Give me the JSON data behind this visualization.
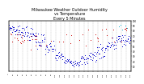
{
  "title": "Milwaukee Weather Outdoor Humidity\nvs Temperature\nEvery 5 Minutes",
  "title_fontsize": 3.5,
  "background_color": "#ffffff",
  "plot_bg_color": "#ffffff",
  "grid_color": "#aaaaaa",
  "blue_color": "#0000cc",
  "red_color": "#cc0000",
  "cyan_color": "#00aacc",
  "dot_size": 0.5,
  "xlim": [
    0,
    260
  ],
  "ylim": [
    0,
    100
  ],
  "right_axis_ticks": [
    10,
    20,
    30,
    40,
    50,
    60,
    70,
    80,
    90,
    100
  ],
  "n_grid_lines": 27,
  "seed": 7
}
